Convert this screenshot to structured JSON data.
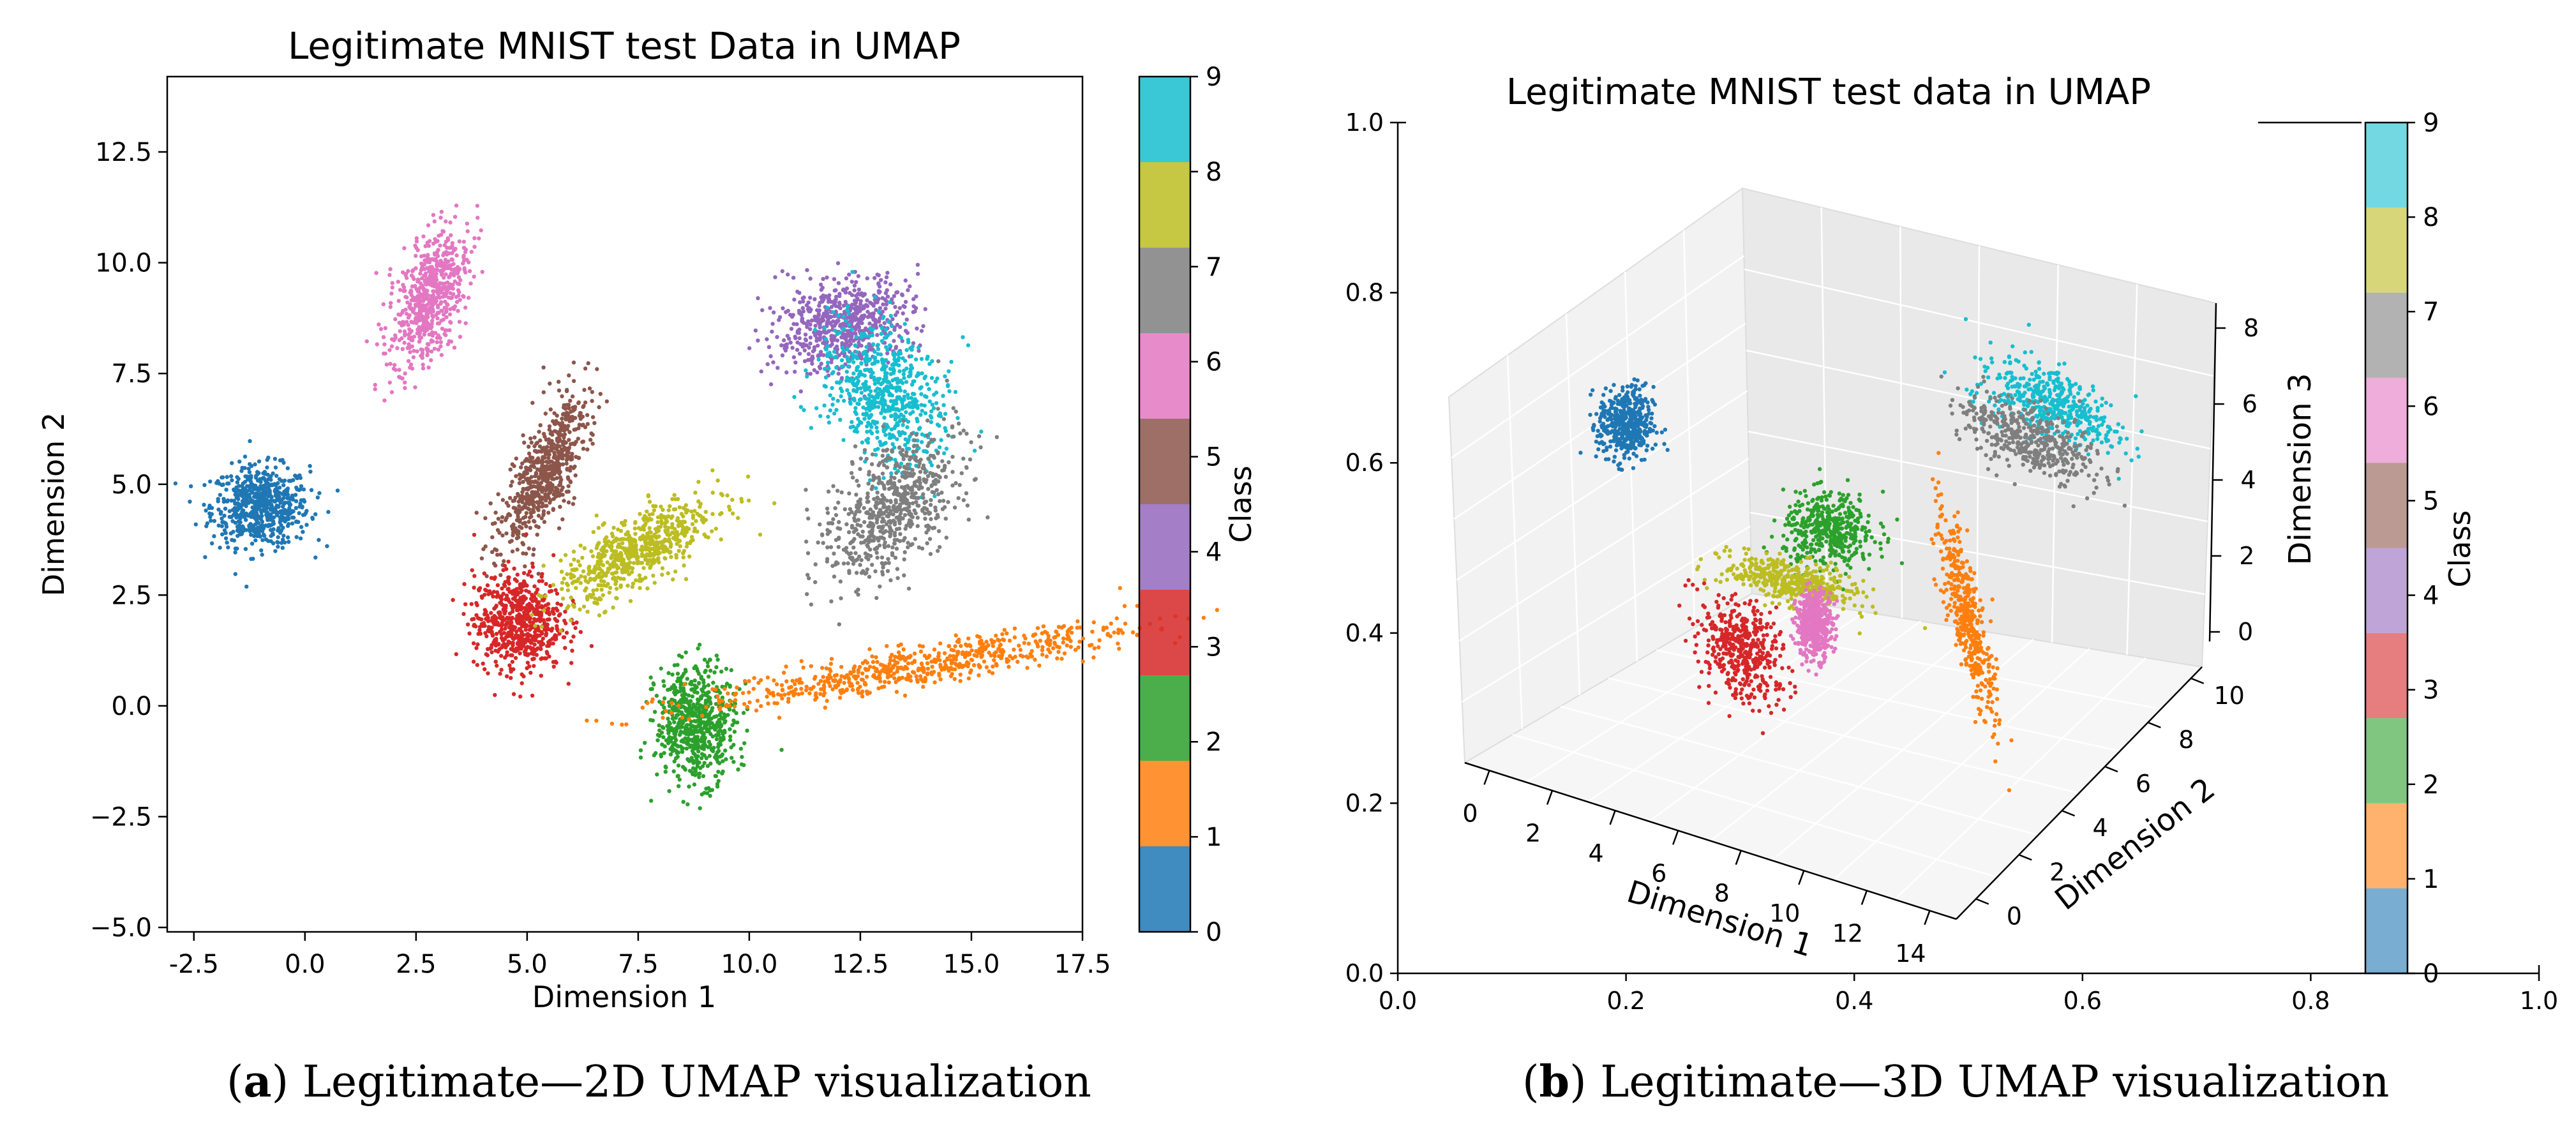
{
  "figure": {
    "caption_a_letter": "a",
    "caption_a_text": "Legitimate—2D UMAP visualization",
    "caption_b_letter": "b",
    "caption_b_text": "Legitimate—3D UMAP visualization"
  },
  "class_colors": {
    "0": "#1f77b4",
    "1": "#ff7f0e",
    "2": "#2ca02c",
    "3": "#d62728",
    "4": "#9467bd",
    "5": "#8c564b",
    "6": "#e377c2",
    "7": "#7f7f7f",
    "8": "#bcbd22",
    "9": "#17becf"
  },
  "chart_data": [
    {
      "type": "scatter",
      "title": "Legitimate MNIST test Data in UMAP",
      "xlabel": "Dimension 1",
      "ylabel": "Dimension 2",
      "xlim": [
        -3.1,
        17.5
      ],
      "ylim": [
        -5.1,
        14.2
      ],
      "xticks": [
        "-2.5",
        "0.0",
        "2.5",
        "5.0",
        "7.5",
        "10.0",
        "12.5",
        "15.0",
        "17.5"
      ],
      "xtick_values": [
        -2.5,
        0,
        2.5,
        5,
        7.5,
        10,
        12.5,
        15,
        17.5
      ],
      "yticks": [
        "−5.0",
        "−2.5",
        "0.0",
        "2.5",
        "5.0",
        "7.5",
        "10.0",
        "12.5"
      ],
      "ytick_values": [
        -5,
        -2.5,
        0,
        2.5,
        5,
        7.5,
        10,
        12.5
      ],
      "colorbar": {
        "label": "Class",
        "ticks": [
          "0",
          "1",
          "2",
          "3",
          "4",
          "5",
          "6",
          "7",
          "8",
          "9"
        ]
      },
      "clusters": [
        {
          "class": 0,
          "cx": -1.0,
          "cy": 4.5,
          "sx": 0.55,
          "sy": 0.45,
          "rot": 0
        },
        {
          "class": 6,
          "cx": 2.8,
          "cy": 9.2,
          "sx": 0.35,
          "sy": 0.8,
          "rot": -20
        },
        {
          "class": 5,
          "cx": 5.4,
          "cy": 5.3,
          "sx": 0.3,
          "sy": 1.0,
          "rot": -25
        },
        {
          "class": 3,
          "cx": 4.8,
          "cy": 1.9,
          "sx": 0.5,
          "sy": 0.55,
          "rot": 0
        },
        {
          "class": 8,
          "cx": 7.5,
          "cy": 3.5,
          "sx": 1.0,
          "sy": 0.35,
          "rot": 30
        },
        {
          "class": 2,
          "cx": 8.8,
          "cy": -0.4,
          "sx": 0.45,
          "sy": 0.65,
          "rot": 0
        },
        {
          "class": 4,
          "cx": 12.1,
          "cy": 8.6,
          "sx": 0.8,
          "sy": 0.5,
          "rot": 15
        },
        {
          "class": 9,
          "cx": 13.1,
          "cy": 7.0,
          "sx": 0.6,
          "sy": 0.85,
          "rot": 30
        },
        {
          "class": 7,
          "cx": 13.2,
          "cy": 4.5,
          "sx": 0.55,
          "sy": 1.0,
          "rot": -40
        },
        {
          "class": 1,
          "cx": 13.8,
          "cy": 0.9,
          "sx": 2.5,
          "sy": 0.22,
          "rot": 10
        }
      ]
    },
    {
      "type": "scatter3d",
      "title": "Legitimate MNIST test data in UMAP",
      "xlabel": "Dimension 1",
      "ylabel": "Dimension 2",
      "zlabel": "Dimension 3",
      "xticks": [
        "0",
        "2",
        "4",
        "6",
        "8",
        "10",
        "12",
        "14"
      ],
      "yticks": [
        "0",
        "2",
        "4",
        "6",
        "8",
        "10"
      ],
      "zticks": [
        "0",
        "2",
        "4",
        "6",
        "8"
      ],
      "outer_xticks": [
        "0.0",
        "0.2",
        "0.4",
        "0.6",
        "0.8",
        "1.0"
      ],
      "outer_yticks": [
        "0.0",
        "0.2",
        "0.4",
        "0.6",
        "0.8",
        "1.0"
      ],
      "colorbar": {
        "label": "Class",
        "ticks": [
          "0",
          "1",
          "2",
          "3",
          "4",
          "5",
          "6",
          "7",
          "8",
          "9"
        ]
      },
      "clusters": [
        {
          "class": 0,
          "cx": 0.2,
          "cy": 0.645,
          "sx": 0.012,
          "sy": 0.022,
          "rot": 0
        },
        {
          "class": 9,
          "cx": 0.573,
          "cy": 0.67,
          "sx": 0.035,
          "sy": 0.018,
          "rot": -35
        },
        {
          "class": 7,
          "cx": 0.552,
          "cy": 0.63,
          "sx": 0.035,
          "sy": 0.017,
          "rot": -35
        },
        {
          "class": 2,
          "cx": 0.378,
          "cy": 0.52,
          "sx": 0.02,
          "sy": 0.022,
          "rot": 0
        },
        {
          "class": 8,
          "cx": 0.345,
          "cy": 0.46,
          "sx": 0.03,
          "sy": 0.012,
          "rot": -20
        },
        {
          "class": 6,
          "cx": 0.365,
          "cy": 0.41,
          "sx": 0.008,
          "sy": 0.02,
          "rot": 0
        },
        {
          "class": 3,
          "cx": 0.3,
          "cy": 0.38,
          "sx": 0.018,
          "sy": 0.03,
          "rot": 15
        },
        {
          "class": 1,
          "cx": 0.5,
          "cy": 0.415,
          "sx": 0.007,
          "sy": 0.06,
          "rot": 10
        }
      ]
    }
  ]
}
